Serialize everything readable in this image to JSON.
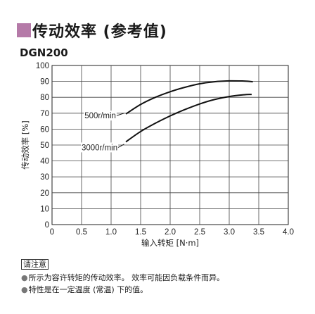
{
  "heading": {
    "title": "传动效率 (参考值)",
    "accent_color": "#b57aa8"
  },
  "model": "DGN200",
  "notes": {
    "box_label": "请注意",
    "lines": [
      "所示为容许转矩的传动效率。 效率可能因负载条件而异。",
      "特性是在一定温度 (常温) 下的值。"
    ]
  },
  "chart_data": {
    "type": "line",
    "xlabel": "输入转矩 [N·m]",
    "ylabel": "传动效率 [%]",
    "xlim": [
      0,
      4.0
    ],
    "ylim": [
      0,
      100
    ],
    "x_ticks": [
      0,
      0.5,
      1.0,
      1.5,
      2.0,
      2.5,
      3.0,
      3.5,
      4.0
    ],
    "x_tick_labels": [
      "0",
      "0.5",
      "1.0",
      "1.5",
      "2.0",
      "2.5",
      "3.0",
      "3.5",
      "4.0"
    ],
    "y_ticks": [
      0,
      10,
      20,
      30,
      40,
      50,
      60,
      70,
      80,
      90,
      100
    ],
    "y_tick_labels": [
      "0",
      "10",
      "20",
      "30",
      "40",
      "50",
      "60",
      "70",
      "80",
      "90",
      "100"
    ],
    "grid": true,
    "series": [
      {
        "name": "500r/min",
        "x": [
          1.25,
          1.5,
          1.75,
          2.0,
          2.25,
          2.5,
          2.75,
          3.0,
          3.25,
          3.4
        ],
        "y": [
          69.5,
          75.5,
          80,
          83.5,
          86.3,
          88.5,
          89.8,
          90.3,
          90.2,
          89.8
        ]
      },
      {
        "name": "3000r/min",
        "x": [
          1.25,
          1.5,
          1.75,
          2.0,
          2.25,
          2.5,
          2.75,
          3.0,
          3.25,
          3.38
        ],
        "y": [
          52,
          58.5,
          63.7,
          68.3,
          72.3,
          75.8,
          78.6,
          80.5,
          81.6,
          81.8
        ]
      }
    ],
    "series_color": "#111111"
  }
}
